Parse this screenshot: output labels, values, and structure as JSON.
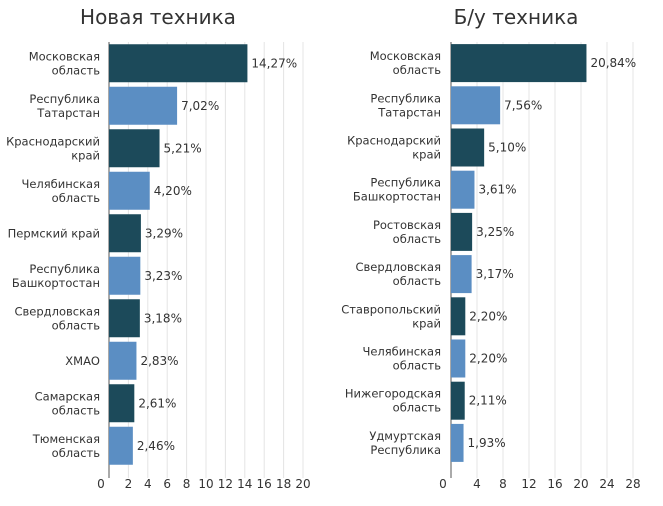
{
  "colors": {
    "dark": "#1c4a5a",
    "light": "#5b8ec3"
  },
  "chart_data": [
    {
      "type": "bar",
      "orientation": "horizontal",
      "title": "Новая техника",
      "categories": [
        [
          "Московская",
          "область"
        ],
        [
          "Республика",
          "Татарстан"
        ],
        [
          "Краснодарский",
          "край"
        ],
        [
          "Челябинская",
          "область"
        ],
        [
          "Пермский край"
        ],
        [
          "Республика",
          "Башкортостан"
        ],
        [
          "Свердловская",
          "область"
        ],
        [
          "ХМАО"
        ],
        [
          "Самарская",
          "область"
        ],
        [
          "Тюменская",
          "область"
        ]
      ],
      "values": [
        14.27,
        7.02,
        5.21,
        4.2,
        3.29,
        3.23,
        3.18,
        2.83,
        2.61,
        2.46
      ],
      "labels": [
        "14,27%",
        "7,02%",
        "5,21%",
        "4,20%",
        "3,29%",
        "3,23%",
        "3,18%",
        "2,83%",
        "2,61%",
        "2,46%"
      ],
      "bar_colors": [
        "dark",
        "light",
        "dark",
        "light",
        "dark",
        "light",
        "dark",
        "light",
        "dark",
        "light"
      ],
      "xticks": [
        0,
        2,
        4,
        6,
        8,
        10,
        12,
        14,
        16,
        18,
        20
      ],
      "xlim": [
        0,
        20
      ],
      "grid": true
    },
    {
      "type": "bar",
      "orientation": "horizontal",
      "title": "Б/у техника",
      "categories": [
        [
          "Московская",
          "область"
        ],
        [
          "Республика",
          "Татарстан"
        ],
        [
          "Краснодарский",
          "край"
        ],
        [
          "Республика",
          "Башкортостан"
        ],
        [
          "Ростовская",
          "область"
        ],
        [
          "Свердловская",
          "область"
        ],
        [
          "Ставропольский",
          "край"
        ],
        [
          "Челябинская",
          "область"
        ],
        [
          "Нижегородская",
          "область"
        ],
        [
          "Удмуртская",
          "Республика"
        ]
      ],
      "values": [
        20.84,
        7.56,
        5.1,
        3.61,
        3.25,
        3.17,
        2.2,
        2.2,
        2.11,
        1.93
      ],
      "labels": [
        "20,84%",
        "7,56%",
        "5,10%",
        "3,61%",
        "3,25%",
        "3,17%",
        "2,20%",
        "2,20%",
        "2,11%",
        "1,93%"
      ],
      "bar_colors": [
        "dark",
        "light",
        "dark",
        "light",
        "dark",
        "light",
        "dark",
        "light",
        "dark",
        "light"
      ],
      "xticks": [
        0,
        4,
        8,
        12,
        16,
        20,
        24,
        28
      ],
      "xlim": [
        0,
        28
      ],
      "grid": true
    }
  ]
}
